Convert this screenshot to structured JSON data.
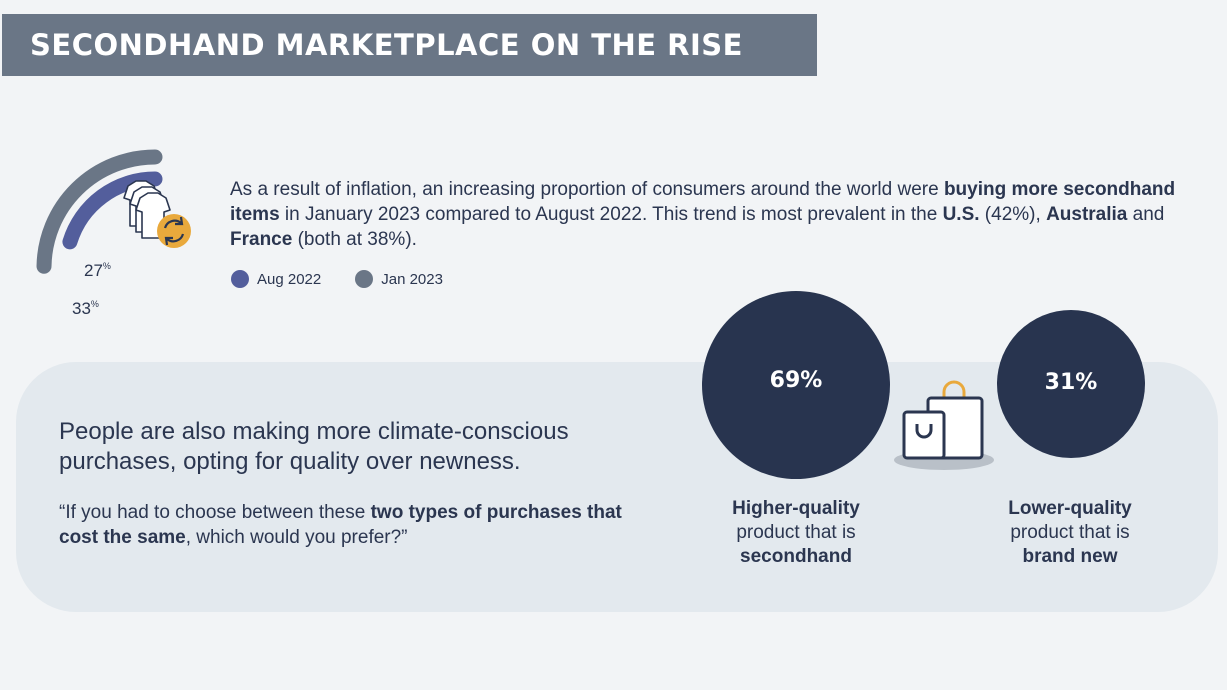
{
  "title": "SECONDHAND MARKETPLACE ON THE RISE",
  "intro": {
    "part1": "As a result of inflation, an increasing proportion of consumers around the world were ",
    "bold1": "buying more secondhand items",
    "part2": " in January 2023 compared to August 2022. This trend is most prevalent in the ",
    "bold2": "U.S.",
    "part3": " (42%), ",
    "bold3": "Australia",
    "part4": " and ",
    "bold4": "France",
    "part5": " (both at 38%)."
  },
  "icons": {
    "clothes": "clothes-recycle-icon",
    "bags": "shopping-bags-icon"
  },
  "panel": {
    "headline": "People are also making more climate-conscious purchases, opting for quality over newness.",
    "quote_part1": "“If you had to choose between these ",
    "quote_bold": "two types of purchases that cost the same",
    "quote_part2": ", which would you prefer?”"
  },
  "options": [
    {
      "value_label": "69%",
      "line1": "Higher-quality",
      "line2": "product that is",
      "line3": "secondhand"
    },
    {
      "value_label": "31%",
      "line1": "Lower-quality",
      "line2": "product that is",
      "line3": "brand new"
    }
  ],
  "chart_data": [
    {
      "type": "pie",
      "series": [
        {
          "name": "Aug 2022",
          "value": 27,
          "label": "27",
          "unit": "%",
          "color": "#535e9c"
        },
        {
          "name": "Jan 2023",
          "value": 33,
          "label": "33",
          "unit": "%",
          "color": "#6a7686"
        }
      ],
      "legend": "bottom"
    },
    {
      "type": "bubble",
      "categories": [
        "Higher-quality product that is secondhand",
        "Lower-quality product that is brand new"
      ],
      "values": [
        69,
        31
      ],
      "color": "#28344f"
    }
  ],
  "colors": {
    "accent": "#535e9c",
    "secondary": "#6a7686",
    "navy": "#28344f",
    "icon_orange": "#e9a93c"
  }
}
